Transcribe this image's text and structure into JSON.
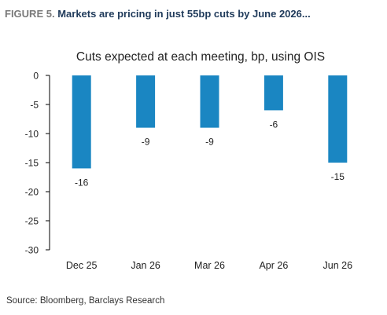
{
  "header": {
    "label": "FIGURE 5.",
    "headline": "Markets are pricing in just 55bp cuts by June 2026..."
  },
  "source": "Source: Bloomberg, Barclays Research",
  "colors": {
    "bar": "#1a86c2",
    "axis": "#000000",
    "text": "#222222"
  },
  "chart_data": {
    "type": "bar",
    "title": "Cuts expected at each meeting, bp, using OIS",
    "xlabel": "",
    "ylabel": "",
    "categories": [
      "Dec 25",
      "Jan 26",
      "Mar 26",
      "Apr 26",
      "Jun 26"
    ],
    "values": [
      -16,
      -9,
      -9,
      -6,
      -15
    ],
    "data_labels": [
      "-16",
      "-9",
      "-9",
      "-6",
      "-15"
    ],
    "ylim": [
      -30,
      0
    ],
    "yticks": [
      0,
      -5,
      -10,
      -15,
      -20,
      -25,
      -30
    ],
    "grid": false,
    "legend": "none"
  }
}
